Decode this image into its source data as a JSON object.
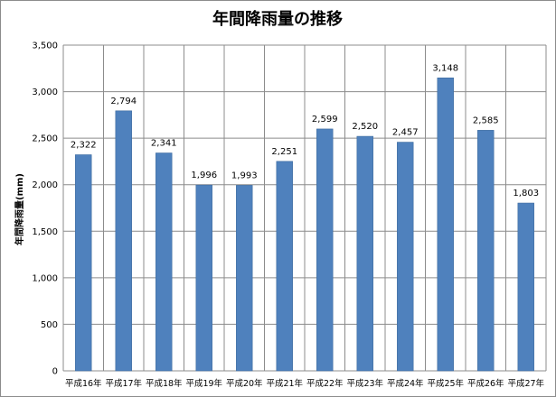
{
  "chart_data": {
    "type": "bar",
    "title": "年間降雨量の推移",
    "xlabel": "",
    "ylabel": "年間降雨量(mm)",
    "ylim": [
      0,
      3500
    ],
    "yticks": [
      0,
      500,
      1000,
      1500,
      2000,
      2500,
      3000,
      3500
    ],
    "ytick_labels": [
      "0",
      "500",
      "1,000",
      "1,500",
      "2,000",
      "2,500",
      "3,000",
      "3,500"
    ],
    "grid": true,
    "categories": [
      "平成16年",
      "平成17年",
      "平成18年",
      "平成19年",
      "平成20年",
      "平成21年",
      "平成22年",
      "平成23年",
      "平成24年",
      "平成25年",
      "平成26年",
      "平成27年"
    ],
    "values": [
      2322,
      2794,
      2341,
      1996,
      1993,
      2251,
      2599,
      2520,
      2457,
      3148,
      2585,
      1803
    ],
    "value_labels": [
      "2,322",
      "2,794",
      "2,341",
      "1,996",
      "1,993",
      "2,251",
      "2,599",
      "2,520",
      "2,457",
      "3,148",
      "2,585",
      "1,803"
    ],
    "bar_color": "#4f81bd",
    "grid_color": "#8c8c8c"
  }
}
